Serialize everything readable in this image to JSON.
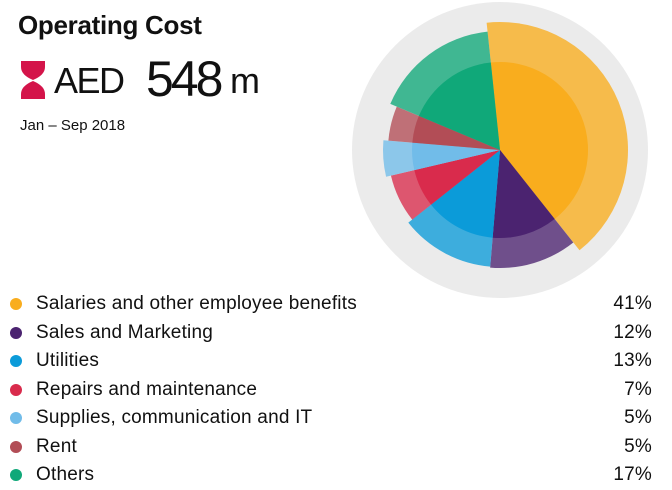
{
  "header": {
    "title": "Operating Cost",
    "currency": "AED",
    "amount": "548",
    "unit": "m",
    "period": "Jan – Sep 2018",
    "icon": "hourglass-icon",
    "icon_color": "#d4144a"
  },
  "chart_data": {
    "type": "pie",
    "title": "Operating Cost",
    "categories": [
      "Salaries and other employee benefits",
      "Sales and Marketing",
      "Utilities",
      "Repairs and maintenance",
      "Supplies, communication and IT",
      "Rent",
      "Others"
    ],
    "values": [
      41,
      12,
      13,
      7,
      5,
      5,
      17
    ],
    "labels": [
      "41%",
      "12%",
      "13%",
      "7%",
      "5%",
      "5%",
      "17%"
    ],
    "colors": [
      "#f9ad1e",
      "#4b2370",
      "#0b9bd9",
      "#d92b4c",
      "#71bce9",
      "#b24d56",
      "#10a879"
    ],
    "background_ring_color": "#ebebeb",
    "legend_position": "bottom"
  }
}
